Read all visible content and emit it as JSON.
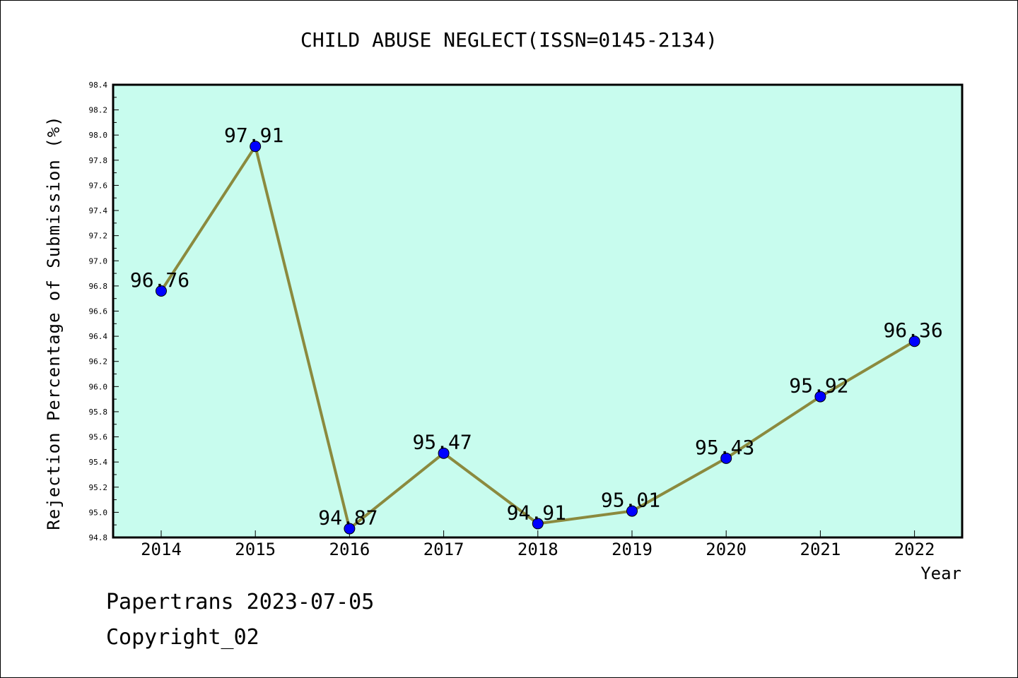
{
  "chart_data": {
    "type": "line",
    "title": "CHILD ABUSE NEGLECT(ISSN=0145-2134)",
    "xlabel": "Year",
    "ylabel": "Rejection Percentage of Submission (%)",
    "categories": [
      "2014",
      "2015",
      "2016",
      "2017",
      "2018",
      "2019",
      "2020",
      "2021",
      "2022"
    ],
    "values": [
      96.76,
      97.91,
      94.87,
      95.47,
      94.91,
      95.01,
      95.43,
      95.92,
      96.36
    ],
    "value_labels": [
      "96.76",
      "97.91",
      "94.87",
      "95.47",
      "94.91",
      "95.01",
      "95.43",
      "95.92",
      "96.36"
    ],
    "ylim": [
      94.8,
      98.4
    ],
    "yticks": [
      "94.8",
      "95.0",
      "95.2",
      "95.4",
      "95.6",
      "95.8",
      "96.0",
      "96.2",
      "96.4",
      "96.6",
      "96.8",
      "97.0",
      "97.2",
      "97.4",
      "97.6",
      "97.8",
      "98.0",
      "98.2",
      "98.4"
    ],
    "grid": false,
    "colors": {
      "plot_bg": "#c8fcee",
      "line": "#8b8a3e",
      "marker": "#0000ff"
    }
  },
  "footer": {
    "line1": "Papertrans 2023-07-05",
    "line2": "Copyright_02"
  }
}
